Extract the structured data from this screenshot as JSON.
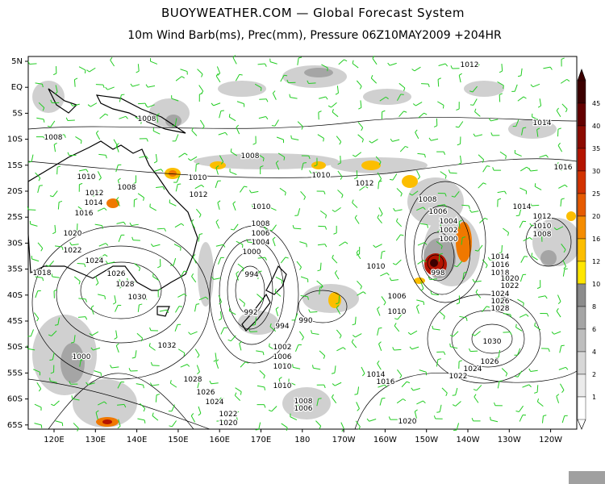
{
  "header": {
    "title": "BUOYWEATHER.COM — Global Forecast System",
    "subtitle": "10m Wind Barb(ms), Prec(mm), Pressure 06Z10MAY2009 +204HR"
  },
  "map": {
    "lat_labels": [
      "5N",
      "EQ",
      "5S",
      "10S",
      "15S",
      "20S",
      "25S",
      "30S",
      "35S",
      "40S",
      "45S",
      "50S",
      "55S",
      "60S",
      "65S"
    ],
    "lon_labels": [
      "120E",
      "130E",
      "140E",
      "150E",
      "160E",
      "170E",
      "180",
      "170W",
      "160W",
      "150W",
      "140W",
      "130W",
      "120W"
    ],
    "isobar_labels": [
      "1012",
      "1008",
      "1008",
      "1014",
      "1008",
      "1016",
      "1010",
      "1010",
      "1010",
      "1012",
      "1008",
      "1012",
      "1012",
      "1014",
      "1008",
      "1006",
      "1014",
      "1012",
      "1016",
      "1010",
      "1004",
      "1010",
      "1002",
      "1008",
      "1020",
      "1008",
      "1006",
      "1004",
      "1000",
      "1022",
      "1000",
      "1014",
      "1024",
      "1016",
      "1010",
      "1018",
      "1018",
      "1026",
      "994",
      "998",
      "1020",
      "1028",
      "1022",
      "1006",
      "1030",
      "1024",
      "992",
      "1010",
      "1026",
      "1028",
      "990",
      "994",
      "1030",
      "1032",
      "1002",
      "1006",
      "1026",
      "1010",
      "1024",
      "1000",
      "1014",
      "1022",
      "1016",
      "1028",
      "1010",
      "1026",
      "1024",
      "1008",
      "1006",
      "1022",
      "1020",
      "1020"
    ]
  },
  "colorbar": {
    "labels": [
      "45",
      "40",
      "35",
      "30",
      "25",
      "20",
      "16",
      "12",
      "10",
      "8",
      "6",
      "4",
      "2",
      "1"
    ],
    "colors": [
      "#3c0000",
      "#640000",
      "#8c0a00",
      "#b41400",
      "#d23200",
      "#e65a00",
      "#f58c00",
      "#fcbe00",
      "#ffe600",
      "#8c8c8c",
      "#a5a5a5",
      "#bebebe",
      "#d7d7d7",
      "#ebebeb",
      "#ffffff"
    ]
  }
}
